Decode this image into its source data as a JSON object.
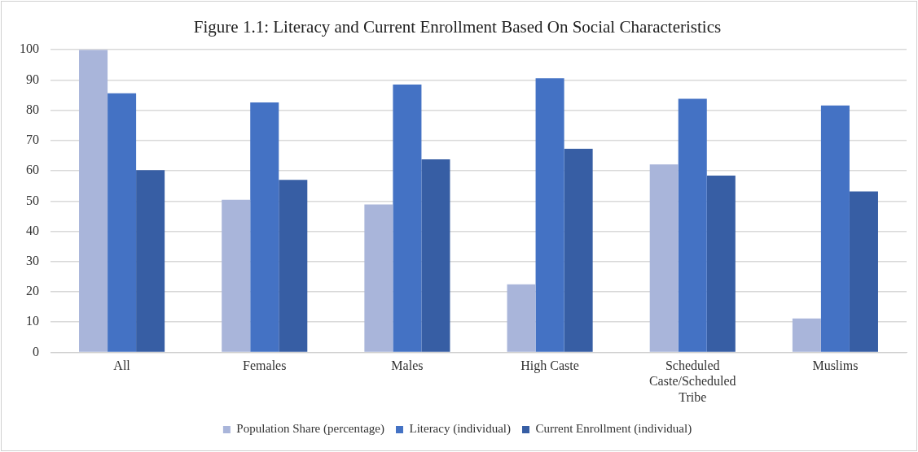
{
  "chart_data": {
    "type": "bar",
    "title": "Figure 1.1: Literacy and Current Enrollment Based On Social Characteristics",
    "categories": [
      "All",
      "Females",
      "Males",
      "High Caste",
      "Scheduled Caste/Scheduled Tribe",
      "Muslims"
    ],
    "series": [
      {
        "name": "Population Share (percentage)",
        "color": "#a9b5da",
        "values": [
          100,
          50.4,
          48.9,
          22.5,
          62.1,
          11.2
        ]
      },
      {
        "name": "Literacy (individual)",
        "color": "#4472c4",
        "values": [
          85.6,
          82.6,
          88.5,
          90.6,
          83.8,
          81.6
        ]
      },
      {
        "name": "Current Enrollment (individual)",
        "color": "#375ea4",
        "values": [
          60.2,
          57.0,
          63.8,
          67.3,
          58.4,
          53.2
        ]
      }
    ],
    "ylim": [
      0,
      100
    ],
    "yticks": [
      0,
      10,
      20,
      30,
      40,
      50,
      60,
      70,
      80,
      90,
      100
    ],
    "grid": "y",
    "legend": "bottom"
  }
}
